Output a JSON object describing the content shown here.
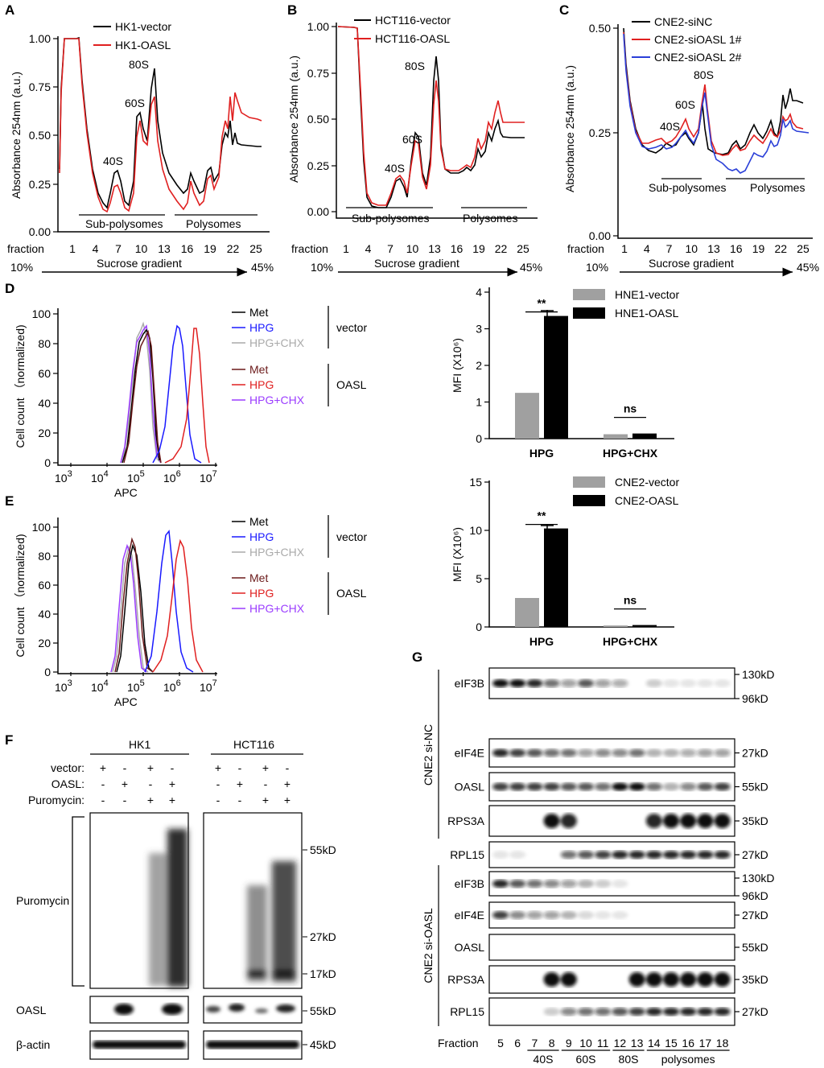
{
  "panels": {
    "A": "A",
    "B": "B",
    "C": "C",
    "D": "D",
    "E": "E",
    "F": "F",
    "G": "G"
  },
  "profiles": {
    "ylabel": "Absorbance 254nm (a.u.)",
    "fraction_label": "fraction",
    "gradient_label": "Sucrose gradient",
    "gradient_start": "10%",
    "gradient_end": "45%",
    "sub_polysomes": "Sub-polysomes",
    "polysomes": "Polysomes",
    "fractions": [
      "1",
      "4",
      "7",
      "10",
      "13",
      "16",
      "19",
      "22",
      "25"
    ],
    "peaks": {
      "p40": "40S",
      "p60": "60S",
      "p80": "80S"
    },
    "A": {
      "yticks": [
        "1.00",
        "0.75",
        "0.50",
        "0.25",
        "0.00"
      ],
      "legend": [
        "HK1-vector",
        "HK1-OASL"
      ],
      "colors": [
        "#000000",
        "#e02020"
      ]
    },
    "B": {
      "yticks": [
        "1.00",
        "0.75",
        "0.50",
        "0.25",
        "0.00"
      ],
      "legend": [
        "HCT116-vector",
        "HCT116-OASL"
      ],
      "colors": [
        "#000000",
        "#e02020"
      ]
    },
    "C": {
      "yticks": [
        "0.50",
        "0.25",
        "0.00"
      ],
      "legend": [
        "CNE2-siNC",
        "CNE2-siOASL 1#",
        "CNE2-siOASL 2#"
      ],
      "colors": [
        "#000000",
        "#e02020",
        "#2a3fd8"
      ]
    }
  },
  "flow": {
    "ylabel": "Cell count （normalized)",
    "xlabel": "APC",
    "yticks": [
      "100",
      "80",
      "60",
      "40",
      "20",
      "0"
    ],
    "xticks": [
      "3",
      "4",
      "5",
      "6",
      "7"
    ],
    "xbase": "10",
    "legend_vector": [
      "Met",
      "HPG",
      "HPG+CHX"
    ],
    "legend_oasl": [
      "Met",
      "HPG",
      "HPG+CHX"
    ],
    "group_vector": "vector",
    "group_oasl": "OASL",
    "colors_vector": [
      "#000000",
      "#1a1aff",
      "#aaaaaa"
    ],
    "colors_oasl": [
      "#6b1a1a",
      "#e02020",
      "#9b3dff"
    ]
  },
  "chart_data": [
    {
      "type": "bar",
      "ylabel": "MFI (X10⁶)",
      "ylim": [
        0,
        4
      ],
      "yticks": [
        "0",
        "1",
        "2",
        "3",
        "4"
      ],
      "categories": [
        "HPG",
        "HPG+CHX"
      ],
      "series": [
        {
          "name": "HNE1-vector",
          "values": [
            1.25,
            0.12
          ]
        },
        {
          "name": "HNE1-OASL",
          "values": [
            3.35,
            0.14
          ]
        }
      ],
      "significance": [
        "**",
        "ns"
      ],
      "legend": "top-right"
    },
    {
      "type": "bar",
      "ylabel": "MFI (X10⁶)",
      "ylim": [
        0,
        15
      ],
      "yticks": [
        "0",
        "5",
        "10",
        "15"
      ],
      "categories": [
        "HPG",
        "HPG+CHX"
      ],
      "series": [
        {
          "name": "CNE2-vector",
          "values": [
            3.0,
            0.15
          ]
        },
        {
          "name": "CNE2-OASL",
          "values": [
            10.2,
            0.2
          ]
        }
      ],
      "significance": [
        "**",
        "ns"
      ],
      "legend": "top-right"
    }
  ],
  "panelF": {
    "groups": [
      "HK1",
      "HCT116"
    ],
    "row_labels": [
      "vector:",
      "OASL:",
      "Puromycin:"
    ],
    "signs": [
      [
        "+",
        "-",
        "+",
        "-"
      ],
      [
        "-",
        "+",
        "-",
        "+"
      ],
      [
        "-",
        "-",
        "+",
        "+"
      ]
    ],
    "blots": [
      "Puromycin",
      "OASL",
      "β-actin"
    ],
    "markers": [
      "55kD",
      "27kD",
      "17kD",
      "55kD",
      "45kD"
    ]
  },
  "panelG": {
    "group_nc": "CNE2 si-NC",
    "group_oasl": "CNE2 si-OASL",
    "blots": [
      "eIF3B",
      "eIF4E",
      "OASL",
      "RPS3A",
      "RPL15"
    ],
    "markers": [
      [
        "130kD",
        "96kD"
      ],
      [
        "27kD"
      ],
      [
        "55kD"
      ],
      [
        "35kD"
      ],
      [
        "27kD"
      ]
    ],
    "fraction_label": "Fraction",
    "fractions": [
      "5",
      "6",
      "7",
      "8",
      "9",
      "10",
      "11",
      "12",
      "13",
      "14",
      "15",
      "16",
      "17",
      "18"
    ],
    "groups": [
      "40S",
      "60S",
      "80S",
      "polysomes"
    ]
  }
}
